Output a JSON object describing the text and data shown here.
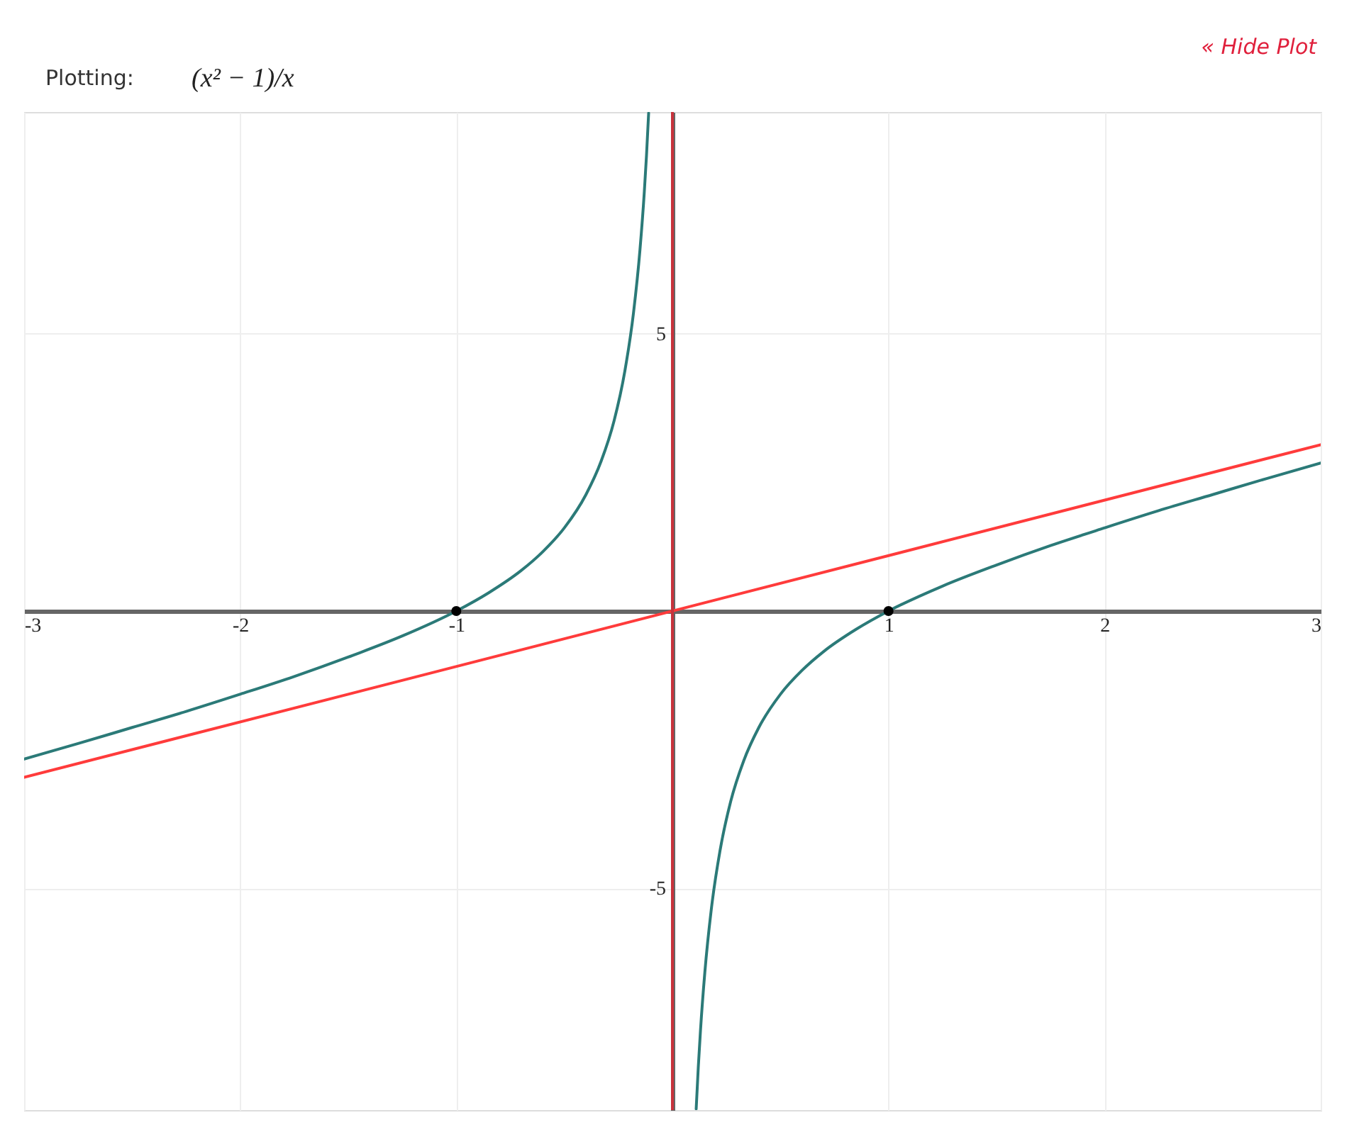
{
  "chart_data": {
    "type": "line",
    "title": "Plotting:",
    "subtitle": "(x² − 1)/x",
    "annotations": [
      "« Hide Plot"
    ],
    "xlim": [
      -3,
      3
    ],
    "ylim": [
      -9,
      9
    ],
    "xticks": [
      -3,
      -2,
      -1,
      1,
      2,
      3
    ],
    "yticks": [
      -5,
      5
    ],
    "grid": true,
    "series": [
      {
        "color": "#2b7a78",
        "x": [
          -3,
          -2.75,
          -2.5,
          -2.25,
          -2,
          -1.75,
          -1.5,
          -1.25,
          -1,
          -0.85,
          -0.7,
          -0.6,
          -0.5,
          -0.4,
          -0.33,
          -0.27,
          -0.22,
          -0.18,
          -0.15,
          -0.13,
          -0.12,
          -0.11,
          0,
          0.11,
          0.12,
          0.13,
          0.15,
          0.18,
          0.22,
          0.27,
          0.33,
          0.4,
          0.5,
          0.6,
          0.7,
          0.85,
          1,
          1.25,
          1.5,
          1.75,
          2,
          2.25,
          2.5,
          2.75,
          3
        ],
        "values": [
          -2.67,
          -2.39,
          -2.1,
          -1.81,
          -1.5,
          -1.18,
          -0.83,
          -0.45,
          0,
          0.33,
          0.73,
          1.07,
          1.5,
          2.1,
          2.7,
          3.43,
          4.33,
          5.38,
          6.52,
          7.56,
          8.21,
          8.98,
          null,
          -8.98,
          -8.21,
          -7.56,
          -6.52,
          -5.38,
          -4.33,
          -3.43,
          -2.7,
          -2.1,
          -1.5,
          -1.07,
          -0.73,
          -0.33,
          0,
          0.45,
          0.83,
          1.18,
          1.5,
          1.81,
          2.1,
          2.39,
          2.67
        ]
      },
      {
        "color": "#ff3b3b",
        "x": [
          -3,
          3
        ],
        "values": [
          -3,
          3
        ]
      },
      {
        "type": "scatter",
        "color": "#000000",
        "marker": "circle",
        "x": [
          -1,
          1
        ],
        "values": [
          0,
          0
        ]
      }
    ],
    "ref_lines": [
      {
        "axis": "x",
        "value": 0,
        "color": "#c8323c"
      }
    ]
  }
}
